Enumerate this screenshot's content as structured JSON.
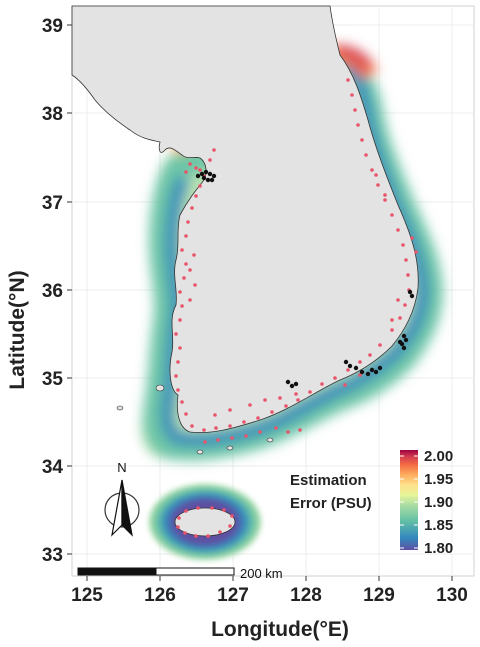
{
  "map": {
    "x_axis": {
      "title": "Longitude(°E)",
      "ticks": [
        "125",
        "126",
        "127",
        "128",
        "129",
        "130"
      ]
    },
    "y_axis": {
      "title": "Latitude(°N)",
      "ticks": [
        "39",
        "38",
        "37",
        "36",
        "35",
        "34",
        "33"
      ]
    },
    "legend": {
      "title_line1": "Estimation",
      "title_line2": "Error (PSU)",
      "ticks": [
        "2.00",
        "1.95",
        "1.90",
        "1.85",
        "1.80"
      ],
      "colors": [
        "#9e0142",
        "#d53e4f",
        "#f46d43",
        "#fdae61",
        "#fee08b",
        "#e6f598",
        "#abdda4",
        "#66c2a5",
        "#3288bd",
        "#5e4fa2"
      ]
    },
    "scale_bar": {
      "label": "200 km"
    },
    "north_arrow": {
      "label": "N"
    },
    "colors": {
      "land": "#e3e3e3",
      "coast_line": "#333333",
      "grid": "#ebebeb",
      "red_stations": "#e8546a",
      "black_stations": "#111111"
    }
  }
}
